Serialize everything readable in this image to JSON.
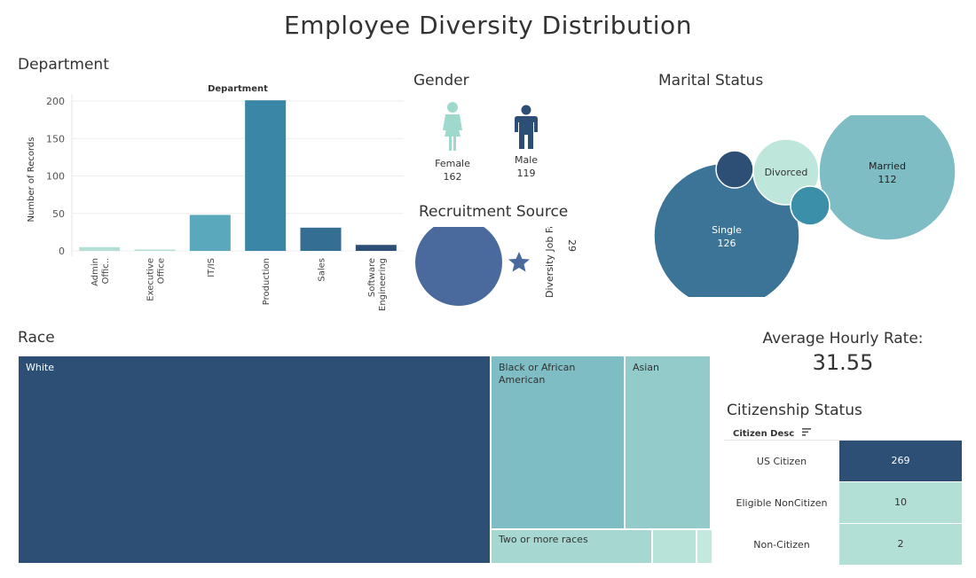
{
  "title": "Employee Diversity Distribution",
  "department": {
    "section_title": "Department",
    "chart_data": {
      "type": "bar",
      "title": "Department",
      "ylabel": "Number of Records",
      "xlabel": "",
      "ylim": [
        0,
        200
      ],
      "yticks": [
        "0",
        "50",
        "100",
        "150",
        "200"
      ],
      "categories": [
        "Admin Offic..",
        "Executive Office",
        "IT/IS",
        "Production",
        "Sales",
        "Software Engineering"
      ],
      "values": [
        5,
        1,
        48,
        201,
        31,
        8
      ],
      "colors": [
        "#b3e0d6",
        "#b3e0d6",
        "#5aa8bb",
        "#3a86a6",
        "#346e93",
        "#2d4f76"
      ],
      "grid": true
    }
  },
  "gender": {
    "section_title": "Gender",
    "female": {
      "label": "Female",
      "value": "162",
      "color": "#9fd9cd",
      "icon": "female-icon"
    },
    "male": {
      "label": "Male",
      "value": "119",
      "color": "#2d4f76",
      "icon": "male-icon"
    }
  },
  "recruitment": {
    "section_title": "Recruitment Source",
    "bubble_color": "#4a6a9d",
    "star_label": "Diversity Job Fair",
    "star_value": "29",
    "star_icon": "star-icon"
  },
  "marital": {
    "section_title": "Marital Status",
    "chart_data": {
      "type": "bubble",
      "items": [
        {
          "name": "Married",
          "value": 112,
          "color": "#7dbdc3",
          "show_value": "112"
        },
        {
          "name": "Single",
          "value": 126,
          "color": "#3c7497",
          "show_value": "126"
        },
        {
          "name": "Divorced",
          "value": 30,
          "color": "#bfe6da",
          "show_value": ""
        },
        {
          "name": "",
          "value": 12,
          "color": "#3c8fa9",
          "show_value": ""
        },
        {
          "name": "",
          "value": 9,
          "color": "#2d4f76",
          "show_value": ""
        }
      ]
    }
  },
  "race": {
    "section_title": "Race",
    "chart_data": {
      "type": "treemap",
      "items": [
        {
          "name": "White",
          "color": "#2d4f76",
          "text_color": "#ffffff"
        },
        {
          "name": "Black or African American",
          "color": "#7dbdc3",
          "text_color": "#333333"
        },
        {
          "name": "Asian",
          "color": "#93cbcb",
          "text_color": "#333333"
        },
        {
          "name": "Two or more races",
          "color": "#a6d7d0",
          "text_color": "#333333"
        },
        {
          "name": "",
          "color": "#b8e3d9",
          "text_color": "#333333"
        },
        {
          "name": "",
          "color": "#c3e9df",
          "text_color": "#333333"
        }
      ]
    }
  },
  "avg_rate": {
    "label": "Average Hourly Rate:",
    "value": "31.55"
  },
  "citizenship": {
    "section_title": "Citizenship  Status",
    "header": "Citizen Desc",
    "sort_icon": "sort-icon",
    "chart_data": {
      "type": "table",
      "rows": [
        {
          "label": "US Citizen",
          "value": "269",
          "color": "#2d4f76",
          "text_color": "#ffffff"
        },
        {
          "label": "Eligible NonCitizen",
          "value": "10",
          "color": "#b3e0d6",
          "text_color": "#333333"
        },
        {
          "label": "Non-Citizen",
          "value": "2",
          "color": "#b3e0d6",
          "text_color": "#333333"
        }
      ]
    }
  }
}
